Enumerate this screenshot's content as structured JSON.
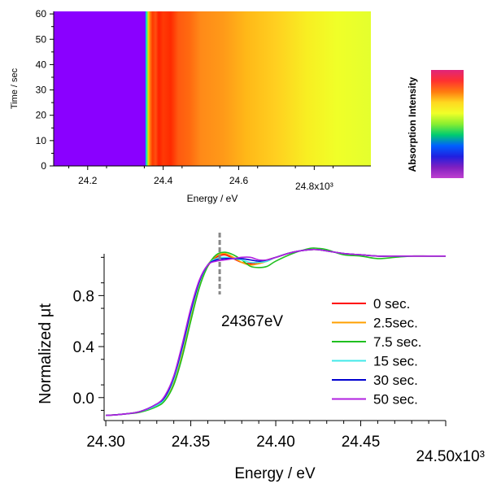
{
  "chart_data": [
    {
      "type": "heatmap",
      "title": "",
      "xlabel": "Energy / eV",
      "ylabel": "Time / sec",
      "xlim": [
        24.11,
        24.95
      ],
      "ylim": [
        0,
        61
      ],
      "x_tick_labels": [
        "24.2",
        "24.4",
        "24.6",
        "24.8x10³"
      ],
      "x_ticks": [
        24.2,
        24.4,
        24.6,
        24.8
      ],
      "y_tick_labels": [
        "0",
        "10",
        "20",
        "30",
        "40",
        "50",
        "60"
      ],
      "y_ticks": [
        0,
        10,
        20,
        30,
        40,
        50,
        60
      ],
      "colorbar_label": "Absorption Intensity",
      "colorbar_stops": [
        "#e0257a",
        "#ff3030",
        "#ff7a10",
        "#ffd820",
        "#f0ff28",
        "#88ee30",
        "#00cc70",
        "#0060ff",
        "#2020e0",
        "#8020c0",
        "#c040d0"
      ],
      "energy_profile": [
        {
          "e": 24.11,
          "c": "#8a00ff"
        },
        {
          "e": 24.352,
          "c": "#8a00ff"
        },
        {
          "e": 24.353,
          "c": "#2060ff"
        },
        {
          "e": 24.355,
          "c": "#00e8d0"
        },
        {
          "e": 24.358,
          "c": "#60f060"
        },
        {
          "e": 24.361,
          "c": "#ffd000"
        },
        {
          "e": 24.366,
          "c": "#ff7010"
        },
        {
          "e": 24.372,
          "c": "#ff3800"
        },
        {
          "e": 24.38,
          "c": "#ff5010"
        },
        {
          "e": 24.388,
          "c": "#ff2000"
        },
        {
          "e": 24.4,
          "c": "#ff3a05"
        },
        {
          "e": 24.42,
          "c": "#ff2a00"
        },
        {
          "e": 24.44,
          "c": "#ff5a10"
        },
        {
          "e": 24.47,
          "c": "#ff6a10"
        },
        {
          "e": 24.5,
          "c": "#ff8a18"
        },
        {
          "e": 24.56,
          "c": "#ff9a18"
        },
        {
          "e": 24.62,
          "c": "#ffb818"
        },
        {
          "e": 24.7,
          "c": "#ffd020"
        },
        {
          "e": 24.78,
          "c": "#f8ee22"
        },
        {
          "e": 24.86,
          "c": "#f0ff28"
        },
        {
          "e": 24.95,
          "c": "#e4ff2e"
        }
      ]
    },
    {
      "type": "line",
      "title": "",
      "xlabel": "Energy / eV",
      "ylabel": "Normalized  μt",
      "xlim": [
        24.299,
        24.5
      ],
      "ylim": [
        -0.18,
        1.3
      ],
      "x_ticks": [
        24.3,
        24.35,
        24.4,
        24.45,
        24.5
      ],
      "x_tick_labels": [
        "24.30",
        "24.35",
        "24.40",
        "24.45",
        "24.50x10³"
      ],
      "y_ticks": [
        0.0,
        0.4,
        0.8
      ],
      "y_tick_labels": [
        "0.0",
        "0.4",
        "0.8"
      ],
      "annotation": {
        "text": "24367eV",
        "x": 24.367
      },
      "legend_position": "center-right",
      "series": [
        {
          "name": "0 sec.",
          "color": "#ff0000",
          "x": [
            24.3,
            24.31,
            24.32,
            24.33,
            24.335,
            24.34,
            24.345,
            24.35,
            24.355,
            24.36,
            24.365,
            24.37,
            24.375,
            24.38,
            24.385,
            24.39,
            24.395,
            24.4,
            24.41,
            24.42,
            24.425,
            24.43,
            24.44,
            24.45,
            24.46,
            24.47,
            24.48,
            24.49,
            24.5
          ],
          "y": [
            -0.14,
            -0.13,
            -0.11,
            -0.06,
            -0.01,
            0.12,
            0.35,
            0.62,
            0.87,
            1.03,
            1.1,
            1.12,
            1.09,
            1.06,
            1.05,
            1.06,
            1.08,
            1.1,
            1.14,
            1.16,
            1.16,
            1.15,
            1.13,
            1.12,
            1.11,
            1.11,
            1.11,
            1.11,
            1.11
          ]
        },
        {
          "name": "2.5sec.",
          "color": "#ffa000",
          "x": [
            24.3,
            24.31,
            24.32,
            24.33,
            24.335,
            24.34,
            24.345,
            24.35,
            24.355,
            24.36,
            24.365,
            24.37,
            24.375,
            24.38,
            24.385,
            24.39,
            24.395,
            24.4,
            24.41,
            24.42,
            24.425,
            24.43,
            24.44,
            24.45,
            24.46,
            24.47,
            24.48,
            24.49,
            24.5
          ],
          "y": [
            -0.14,
            -0.13,
            -0.11,
            -0.06,
            -0.01,
            0.12,
            0.35,
            0.63,
            0.88,
            1.04,
            1.11,
            1.13,
            1.1,
            1.06,
            1.04,
            1.05,
            1.07,
            1.1,
            1.14,
            1.16,
            1.16,
            1.15,
            1.13,
            1.12,
            1.11,
            1.11,
            1.11,
            1.11,
            1.11
          ]
        },
        {
          "name": "7.5 sec.",
          "color": "#20c020",
          "x": [
            24.3,
            24.31,
            24.32,
            24.33,
            24.335,
            24.34,
            24.345,
            24.35,
            24.355,
            24.36,
            24.365,
            24.37,
            24.375,
            24.38,
            24.385,
            24.39,
            24.395,
            24.4,
            24.41,
            24.42,
            24.425,
            24.43,
            24.44,
            24.45,
            24.46,
            24.47,
            24.48,
            24.49,
            24.5
          ],
          "y": [
            -0.14,
            -0.13,
            -0.115,
            -0.07,
            -0.02,
            0.1,
            0.32,
            0.6,
            0.86,
            1.03,
            1.12,
            1.14,
            1.12,
            1.08,
            1.03,
            1.02,
            1.03,
            1.07,
            1.13,
            1.17,
            1.17,
            1.16,
            1.12,
            1.11,
            1.09,
            1.1,
            1.11,
            1.11,
            1.11
          ]
        },
        {
          "name": "15 sec.",
          "color": "#40e8e8",
          "x": [
            24.3,
            24.31,
            24.32,
            24.33,
            24.335,
            24.34,
            24.345,
            24.35,
            24.355,
            24.36,
            24.365,
            24.37,
            24.375,
            24.38,
            24.385,
            24.39,
            24.395,
            24.4,
            24.41,
            24.42,
            24.425,
            24.43,
            24.44,
            24.45,
            24.46,
            24.47,
            24.48,
            24.49,
            24.5
          ],
          "y": [
            -0.14,
            -0.13,
            -0.11,
            -0.06,
            0.0,
            0.14,
            0.38,
            0.66,
            0.9,
            1.04,
            1.09,
            1.1,
            1.09,
            1.08,
            1.06,
            1.06,
            1.07,
            1.1,
            1.14,
            1.16,
            1.16,
            1.15,
            1.13,
            1.12,
            1.11,
            1.11,
            1.11,
            1.11,
            1.11
          ]
        },
        {
          "name": "30 sec.",
          "color": "#0000d0",
          "x": [
            24.3,
            24.31,
            24.32,
            24.33,
            24.335,
            24.34,
            24.345,
            24.35,
            24.355,
            24.36,
            24.365,
            24.37,
            24.375,
            24.38,
            24.385,
            24.39,
            24.395,
            24.4,
            24.41,
            24.42,
            24.425,
            24.43,
            24.44,
            24.45,
            24.46,
            24.47,
            24.48,
            24.49,
            24.5
          ],
          "y": [
            -0.14,
            -0.13,
            -0.11,
            -0.05,
            0.01,
            0.16,
            0.4,
            0.68,
            0.91,
            1.04,
            1.08,
            1.09,
            1.09,
            1.09,
            1.08,
            1.07,
            1.08,
            1.1,
            1.14,
            1.16,
            1.16,
            1.15,
            1.13,
            1.12,
            1.11,
            1.11,
            1.11,
            1.11,
            1.11
          ]
        },
        {
          "name": "50 sec.",
          "color": "#b020e0",
          "x": [
            24.3,
            24.31,
            24.32,
            24.33,
            24.335,
            24.34,
            24.345,
            24.35,
            24.355,
            24.36,
            24.365,
            24.37,
            24.375,
            24.38,
            24.385,
            24.39,
            24.395,
            24.4,
            24.41,
            24.42,
            24.425,
            24.43,
            24.44,
            24.45,
            24.46,
            24.47,
            24.48,
            24.49,
            24.5
          ],
          "y": [
            -0.14,
            -0.13,
            -0.11,
            -0.05,
            0.02,
            0.17,
            0.42,
            0.7,
            0.92,
            1.04,
            1.07,
            1.08,
            1.09,
            1.1,
            1.1,
            1.08,
            1.08,
            1.1,
            1.14,
            1.16,
            1.16,
            1.15,
            1.13,
            1.12,
            1.11,
            1.11,
            1.11,
            1.11,
            1.11
          ]
        }
      ]
    }
  ]
}
